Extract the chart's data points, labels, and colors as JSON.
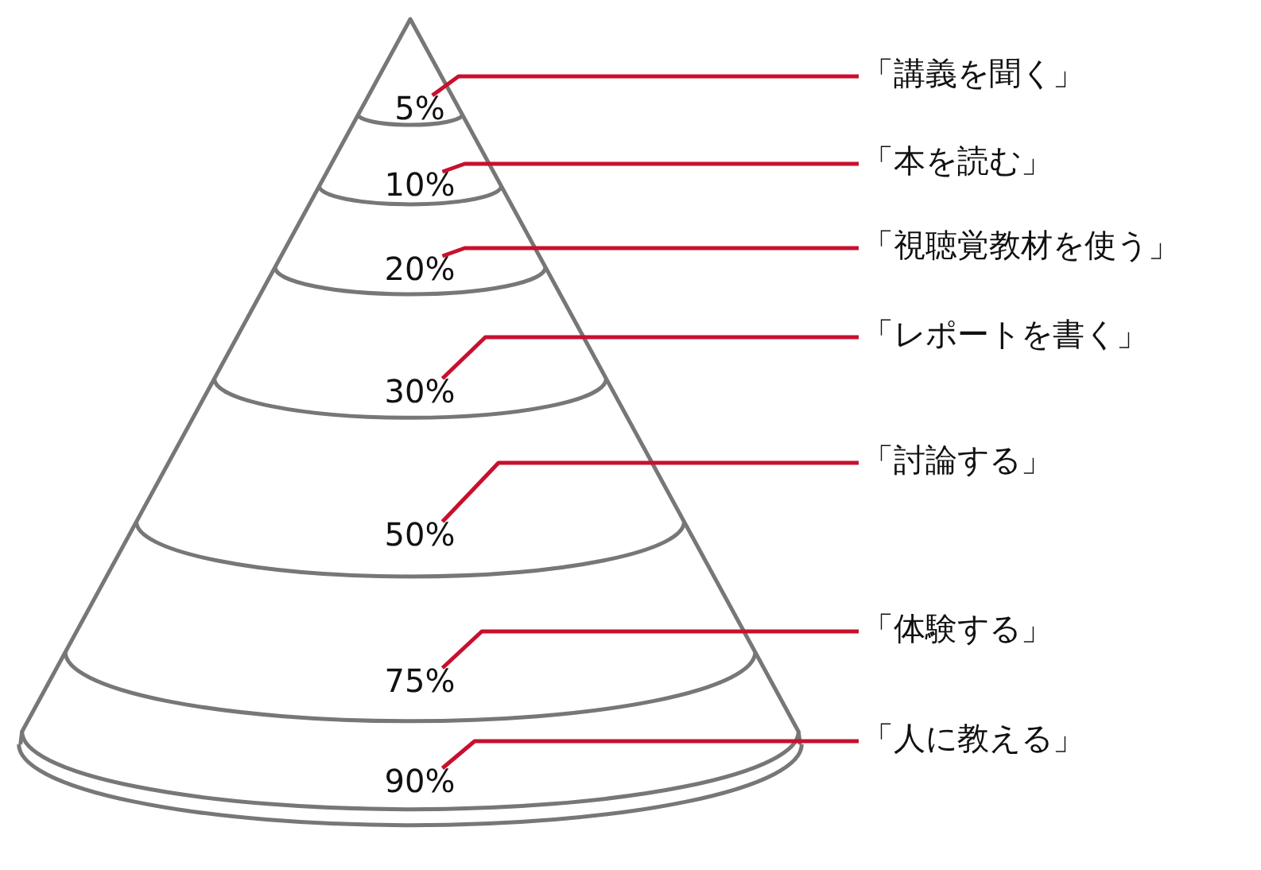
{
  "chart_data": {
    "type": "other",
    "categories": [
      "「講義を聞く」",
      "「本を読む」",
      "「視聴覚教材を使う」",
      "「レポートを書く」",
      "「討論する」",
      "「体験する」",
      "「人に教える」"
    ],
    "values": [
      5,
      10,
      20,
      30,
      50,
      75,
      90
    ],
    "value_labels": [
      "5%",
      "10%",
      "20%",
      "30%",
      "50%",
      "75%",
      "90%"
    ],
    "color": "#c8102e"
  }
}
